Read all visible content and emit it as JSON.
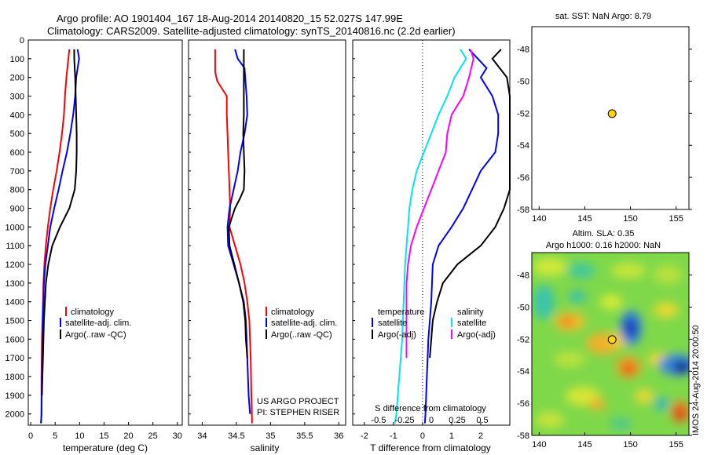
{
  "header": {
    "title_line1": "Argo profile: AO 1901404_167 18-Aug-2014 20140820_15 52.027S 147.99E",
    "title_line2": "Climatology: CARS2009. Satellite-adjusted climatology: synTS_20140816.nc (2.2d earlier)"
  },
  "colors": {
    "climatology": "#ff0000",
    "satellite": "#0000ff",
    "argo": "#000000",
    "salinity_satellite": "#00e5ee",
    "salinity_argo": "#ff00ff"
  },
  "chart_data": [
    {
      "type": "line",
      "panel": "temperature",
      "xlabel": "temperature (deg C)",
      "xlim": [
        -0.5,
        31
      ],
      "xticks": [
        0,
        5,
        10,
        15,
        20,
        25,
        30
      ],
      "ylim": [
        2060,
        0
      ],
      "yticks": [
        0,
        100,
        200,
        300,
        400,
        500,
        600,
        700,
        800,
        900,
        1000,
        1100,
        1200,
        1300,
        1400,
        1500,
        1600,
        1700,
        1800,
        1900,
        2000
      ],
      "series": [
        {
          "name": "climatology",
          "color": "#ff0000",
          "x": [
            7.9,
            7.7,
            7.3,
            7.0,
            6.8,
            6.4,
            5.9,
            5.3,
            4.6,
            4.0,
            3.5,
            3.1,
            2.8,
            2.6,
            2.5,
            2.4,
            2.3,
            2.2,
            2.2,
            2.1
          ],
          "y": [
            50,
            100,
            200,
            300,
            400,
            500,
            600,
            700,
            800,
            900,
            1000,
            1100,
            1200,
            1300,
            1400,
            1500,
            1600,
            1800,
            2000,
            2050
          ]
        },
        {
          "name": "satellite-adj. clim.",
          "color": "#0000ff",
          "x": [
            9.6,
            9.9,
            9.3,
            9.1,
            8.7,
            8.1,
            7.4,
            6.5,
            5.7,
            4.8,
            4.0,
            3.5,
            3.0,
            2.7,
            2.6,
            2.5,
            2.4,
            2.3,
            2.2,
            2.1
          ],
          "y": [
            50,
            100,
            200,
            300,
            400,
            500,
            600,
            700,
            800,
            900,
            1000,
            1100,
            1200,
            1300,
            1400,
            1500,
            1600,
            1800,
            2000,
            2050
          ]
        },
        {
          "name": "Argo(..raw -QC)",
          "color": "#000000",
          "x": [
            8.9,
            8.9,
            9.1,
            9.2,
            9.3,
            9.4,
            9.4,
            9.3,
            9.0,
            7.9,
            6.0,
            4.4,
            3.6,
            3.1,
            2.9,
            2.7,
            2.6,
            2.5,
            2.4,
            2.3
          ],
          "y": [
            50,
            100,
            200,
            300,
            400,
            500,
            600,
            700,
            800,
            900,
            1000,
            1100,
            1200,
            1300,
            1400,
            1500,
            1600,
            1700,
            1800,
            1900
          ]
        }
      ],
      "legend": [
        "climatology",
        "satellite-adj. clim.",
        "Argo(..raw -QC)"
      ]
    },
    {
      "type": "line",
      "panel": "salinity",
      "xlabel": "salinity",
      "xlim": [
        33.8,
        36.1
      ],
      "xticks": [
        34,
        34.5,
        35,
        35.5,
        36
      ],
      "ylim": [
        2060,
        0
      ],
      "series": [
        {
          "name": "climatology",
          "color": "#ff0000",
          "x": [
            34.19,
            34.19,
            34.22,
            34.36,
            34.36,
            34.37,
            34.38,
            34.39,
            34.4,
            34.41,
            34.4,
            34.48,
            34.56,
            34.62,
            34.66,
            34.69,
            34.71,
            34.72,
            34.73
          ],
          "y": [
            50,
            170,
            220,
            300,
            400,
            500,
            600,
            700,
            800,
            900,
            1000,
            1100,
            1200,
            1300,
            1400,
            1500,
            1700,
            1900,
            2050
          ]
        },
        {
          "name": "satellite-adj. clim.",
          "color": "#0000ff",
          "x": [
            34.48,
            34.52,
            34.62,
            34.65,
            34.66,
            34.62,
            34.56,
            34.52,
            34.46,
            34.4,
            34.37,
            34.38,
            34.46,
            34.54,
            34.61,
            34.64,
            34.66,
            34.68,
            34.7
          ],
          "y": [
            50,
            100,
            150,
            300,
            400,
            500,
            600,
            700,
            800,
            900,
            1000,
            1100,
            1200,
            1300,
            1400,
            1500,
            1700,
            1900,
            2000
          ]
        },
        {
          "name": "Argo(..raw -QC)",
          "color": "#000000",
          "x": [
            34.61,
            34.61,
            34.61,
            34.61,
            34.6,
            34.61,
            34.62,
            34.61,
            34.55,
            34.48,
            34.39,
            34.4,
            34.47,
            34.54,
            34.6,
            34.63,
            34.64,
            34.66
          ],
          "y": [
            50,
            200,
            300,
            400,
            500,
            600,
            700,
            800,
            850,
            900,
            1000,
            1100,
            1200,
            1300,
            1400,
            1500,
            1600,
            1700
          ]
        }
      ],
      "legend": [
        "climatology",
        "satellite-adj. clim.",
        "Argo(..raw -QC)"
      ],
      "annotation": [
        "US ARGO PROJECT",
        "PI: STEPHEN RISER"
      ]
    },
    {
      "type": "line",
      "panel": "difference",
      "xlabel": "T difference from climatology",
      "xlim": [
        -2.4,
        3.0
      ],
      "xticks": [
        -2,
        -1,
        0,
        1,
        2
      ],
      "top_label": "S difference from climatology",
      "top_ticks": [
        "-0.5",
        "-0.25",
        "0",
        "0.25",
        "0.5"
      ],
      "ylim": [
        2060,
        0
      ],
      "series": [
        {
          "name": "temperature satellite",
          "color": "#0000ff",
          "x": [
            1.6,
            1.9,
            2.2,
            2.0,
            2.4,
            2.6,
            2.6,
            2.5,
            2.0,
            1.7,
            1.4,
            1.0,
            0.55,
            0.35,
            0.3,
            0.2,
            0.15,
            0.1,
            0.08
          ],
          "y": [
            50,
            100,
            150,
            200,
            300,
            400,
            500,
            600,
            700,
            800,
            900,
            1000,
            1100,
            1200,
            1400,
            1600,
            1800,
            2000,
            2050
          ]
        },
        {
          "name": "temperature Argo(-adj)",
          "color": "#000000",
          "x": [
            2.7,
            2.4,
            2.9,
            3.2,
            3.5,
            3.6,
            3.7,
            3.5,
            3.1,
            2.8,
            2.5,
            2.0,
            1.2,
            0.7,
            0.5,
            0.35,
            0.3,
            0.25
          ],
          "y": [
            50,
            100,
            200,
            300,
            400,
            500,
            600,
            700,
            800,
            900,
            1000,
            1100,
            1200,
            1300,
            1400,
            1500,
            1600,
            1700
          ]
        },
        {
          "name": "salinity satellite",
          "color": "#00e5ee",
          "x": [
            1.3,
            1.5,
            1.1,
            0.85,
            0.55,
            0.3,
            0.05,
            -0.2,
            -0.35,
            -0.45,
            -0.5,
            -0.55,
            -0.6,
            -0.65,
            -0.7,
            -0.8,
            -0.85,
            -0.9,
            -0.95
          ],
          "y": [
            50,
            100,
            200,
            300,
            400,
            500,
            600,
            700,
            800,
            900,
            1000,
            1100,
            1200,
            1400,
            1600,
            1800,
            1900,
            2000,
            2050
          ]
        },
        {
          "name": "salinity Argo(-adj)",
          "color": "#ff00ff",
          "x": [
            1.65,
            1.75,
            1.6,
            1.4,
            1.0,
            0.85,
            0.8,
            0.55,
            0.3,
            0.05,
            -0.2,
            -0.4,
            -0.5,
            -0.55,
            -0.55,
            -0.55,
            -0.55
          ],
          "y": [
            50,
            100,
            200,
            300,
            400,
            500,
            600,
            700,
            800,
            900,
            1000,
            1100,
            1200,
            1300,
            1400,
            1500,
            1700
          ]
        }
      ],
      "legend_temperature_title": "temperature",
      "legend_salinity_title": "salinity",
      "legend": [
        "satellite",
        "Argo(-adj)",
        "satellite",
        "Argo(-adj)"
      ]
    },
    {
      "type": "scatter",
      "panel": "sst-map",
      "title": "sat. SST: NaN Argo: 8.79",
      "xlim": [
        139.2,
        156.4
      ],
      "ylim": [
        -58,
        -46.6
      ],
      "xticks": [
        140,
        145,
        150,
        155
      ],
      "yticks": [
        -48,
        -50,
        -52,
        -54,
        -56,
        -58
      ],
      "points": [
        {
          "x": 147.99,
          "y": -52.027,
          "color": "#ffd700"
        }
      ]
    },
    {
      "type": "heatmap",
      "panel": "sla-map",
      "title_line1": "Altim. SLA: 0.35",
      "title_line2": "Argo h1000: 0.16 h2000: NaN",
      "xlim": [
        139.2,
        156.4
      ],
      "ylim": [
        -58,
        -46.6
      ],
      "xticks": [
        140,
        145,
        150,
        155
      ],
      "yticks": [
        -48,
        -50,
        -52,
        -54,
        -56,
        -58
      ],
      "points": [
        {
          "x": 147.99,
          "y": -52.027,
          "color": "#ffd700"
        }
      ],
      "side_label": "IMOS 24-Aug-2014 20:00:50"
    }
  ]
}
